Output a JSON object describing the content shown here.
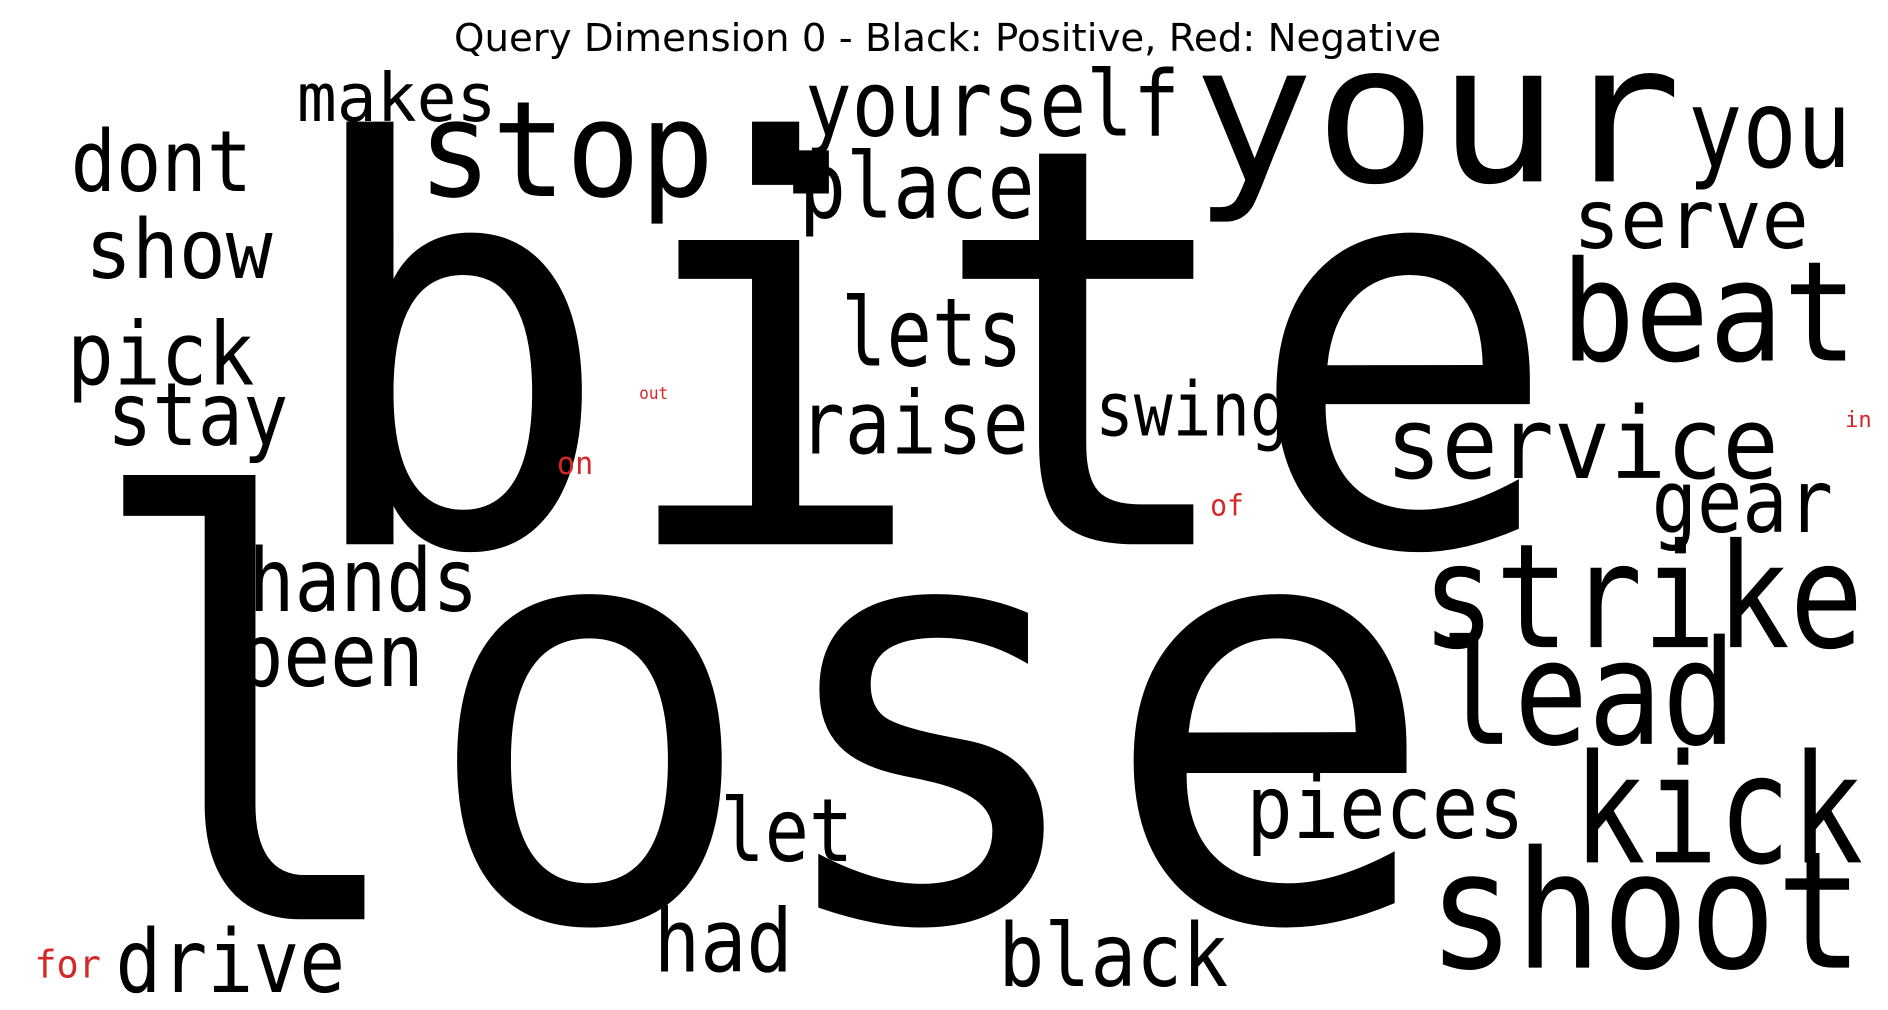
{
  "title": "Query Dimension 0 - Black: Positive, Red: Negative",
  "words": [
    {
      "text": "bite",
      "color": "#000000"
    },
    {
      "text": "lose",
      "color": "#000000"
    },
    {
      "text": "your",
      "color": "#000000"
    },
    {
      "text": "stop",
      "color": "#000000"
    },
    {
      "text": ".",
      "color": "#000000"
    },
    {
      "text": "yourself",
      "color": "#000000"
    },
    {
      "text": "place",
      "color": "#000000"
    },
    {
      "text": "makes",
      "color": "#000000"
    },
    {
      "text": "dont",
      "color": "#000000"
    },
    {
      "text": "show",
      "color": "#000000"
    },
    {
      "text": "pick",
      "color": "#000000"
    },
    {
      "text": "stay",
      "color": "#000000"
    },
    {
      "text": "you",
      "color": "#000000"
    },
    {
      "text": "serve",
      "color": "#000000"
    },
    {
      "text": "beat",
      "color": "#000000"
    },
    {
      "text": "lets",
      "color": "#000000"
    },
    {
      "text": "raise",
      "color": "#000000"
    },
    {
      "text": "swing",
      "color": "#000000"
    },
    {
      "text": "service",
      "color": "#000000"
    },
    {
      "text": "gear",
      "color": "#000000"
    },
    {
      "text": "strike",
      "color": "#000000"
    },
    {
      "text": "lead",
      "color": "#000000"
    },
    {
      "text": "hands",
      "color": "#000000"
    },
    {
      "text": "been",
      "color": "#000000"
    },
    {
      "text": "let",
      "color": "#000000"
    },
    {
      "text": "pieces",
      "color": "#000000"
    },
    {
      "text": "kick",
      "color": "#000000"
    },
    {
      "text": "shoot",
      "color": "#000000"
    },
    {
      "text": "had",
      "color": "#000000"
    },
    {
      "text": "black",
      "color": "#000000"
    },
    {
      "text": "drive",
      "color": "#000000"
    },
    {
      "text": "out",
      "color": "#d62728"
    },
    {
      "text": "on",
      "color": "#d62728"
    },
    {
      "text": "of",
      "color": "#d62728"
    },
    {
      "text": "in",
      "color": "#d62728"
    },
    {
      "text": "for",
      "color": "#d62728"
    }
  ]
}
